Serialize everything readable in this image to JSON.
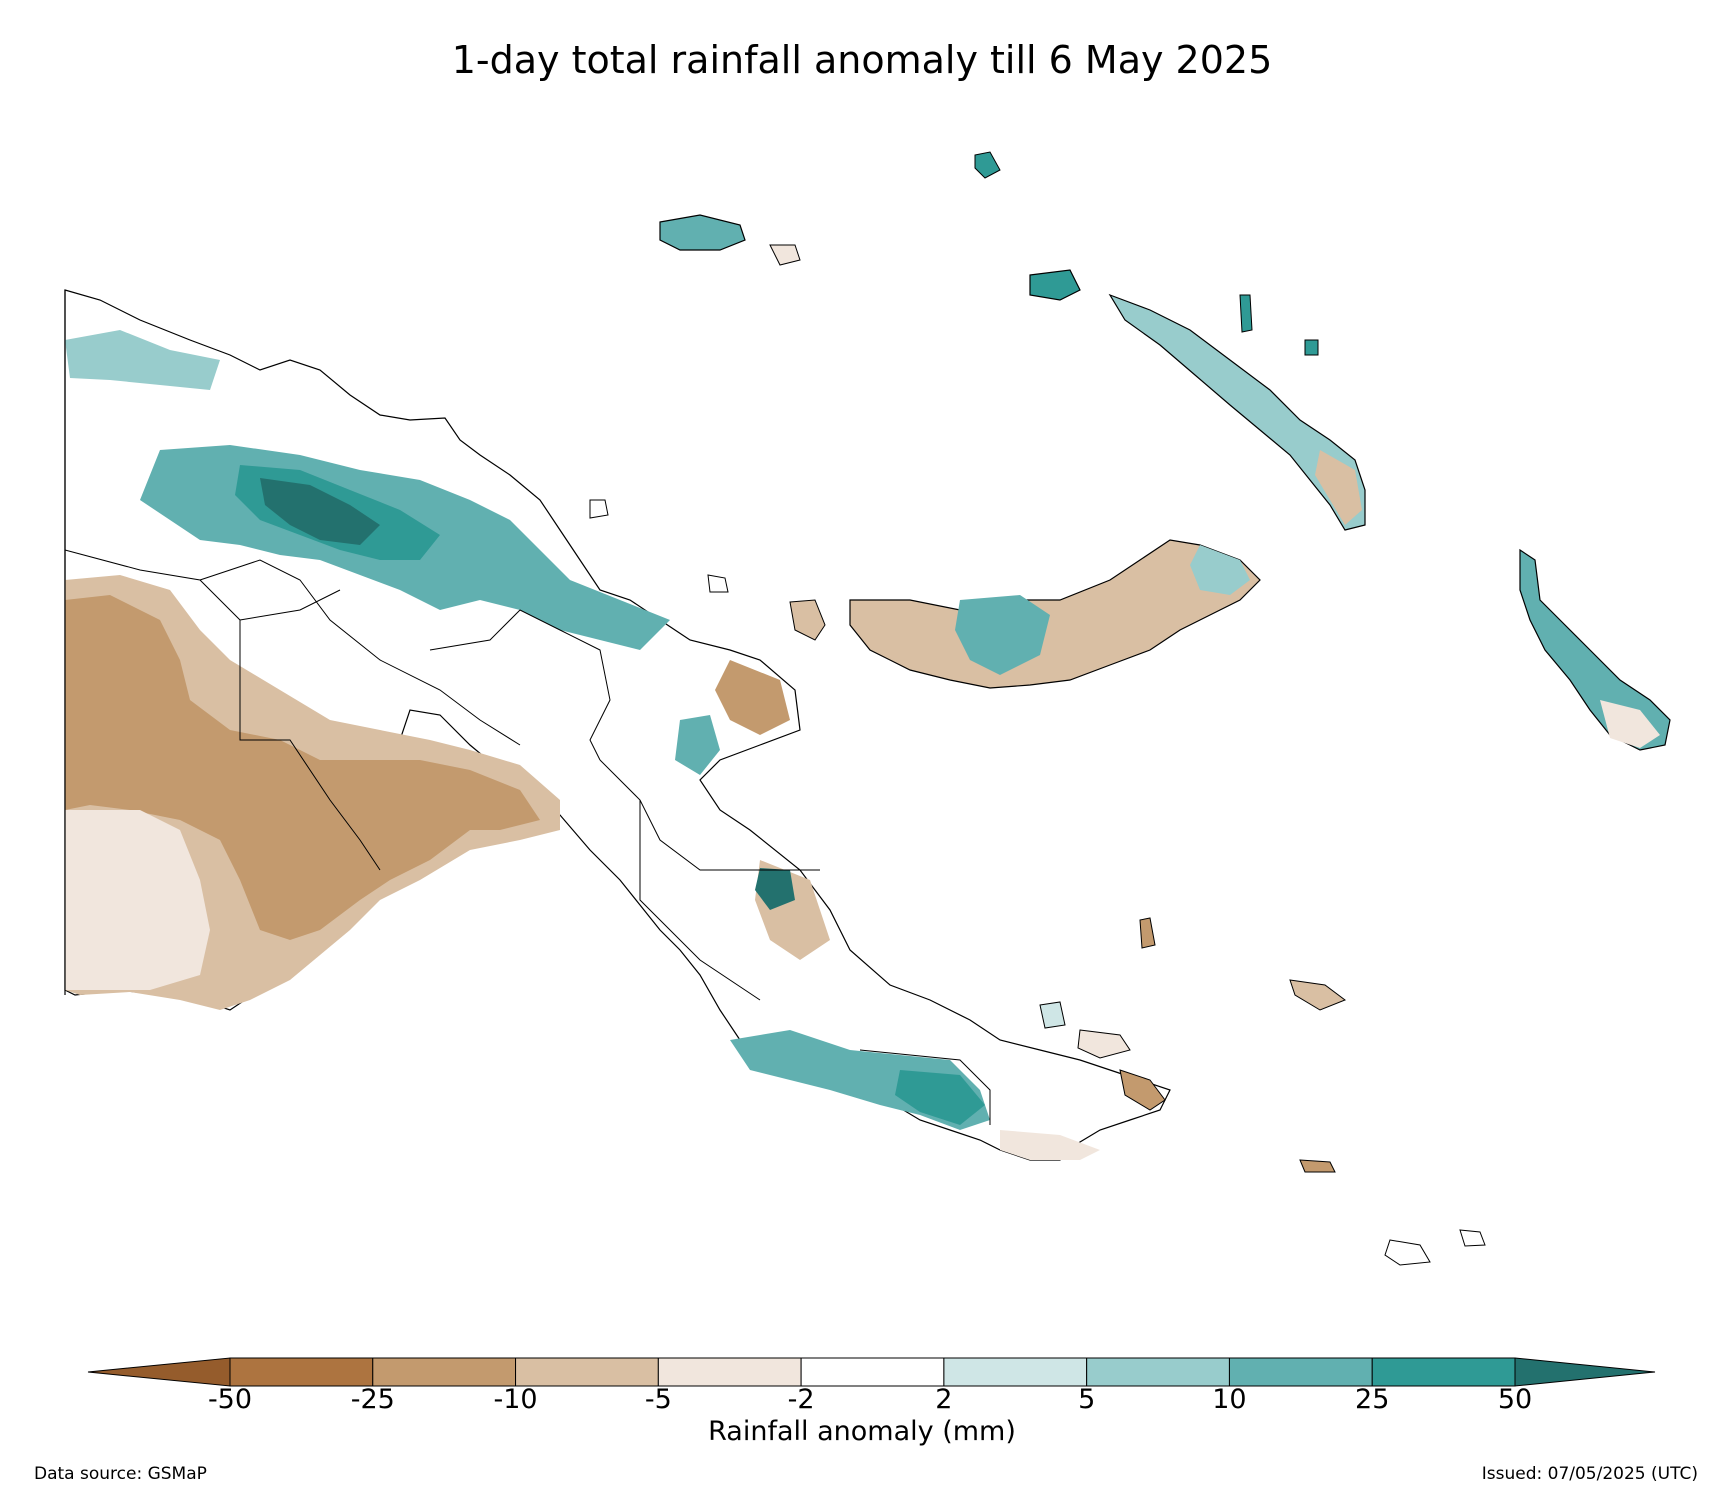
{
  "title": "1-day total rainfall anomaly till 6 May 2025",
  "colorbar": {
    "title": "Rainfall anomaly (mm)",
    "tick_labels": [
      "-50",
      "-25",
      "-10",
      "-5",
      "-2",
      "2",
      "5",
      "10",
      "25",
      "50"
    ],
    "colors": [
      "#955c2c",
      "#ad7440",
      "#c39a6e",
      "#d9bfa3",
      "#f1e6dd",
      "#ffffff",
      "#cfe6e6",
      "#98cccc",
      "#61b0b0",
      "#2f9a95",
      "#23716e"
    ]
  },
  "footer": {
    "source": "Data source: GSMaP",
    "issued": "Issued: 07/05/2025 (UTC)"
  }
}
